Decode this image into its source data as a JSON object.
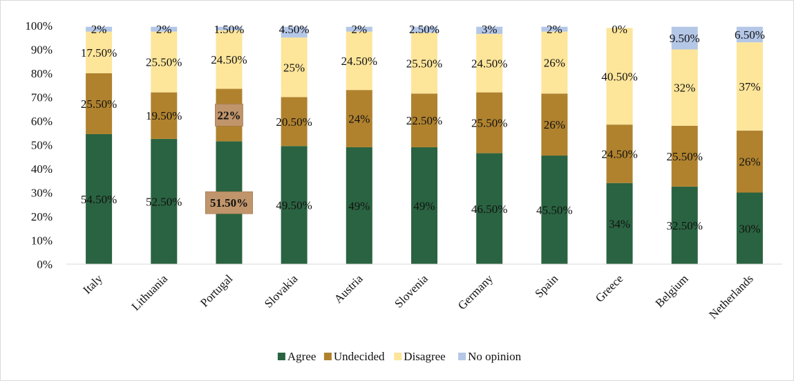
{
  "chart_data": {
    "type": "bar",
    "stacked": true,
    "categories": [
      "Italy",
      "Lithuania",
      "Portugal",
      "Slovakia",
      "Austria",
      "Slovenia",
      "Germany",
      "Spain",
      "Greece",
      "Belgium",
      "Netherlands"
    ],
    "series": [
      {
        "name": "Agree",
        "color": "#2a6341",
        "values": [
          54.5,
          52.5,
          51.5,
          49.5,
          49,
          49,
          46.5,
          45.5,
          34,
          32.5,
          30
        ],
        "labels": [
          "54.50%",
          "52.50%",
          "51.50%",
          "49.50%",
          "49%",
          "49%",
          "46.50%",
          "45.50%",
          "34%",
          "32.50%",
          "30%"
        ]
      },
      {
        "name": "Undecided",
        "color": "#b0822e",
        "values": [
          25.5,
          19.5,
          22,
          20.5,
          24,
          22.5,
          25.5,
          26,
          24.5,
          25.5,
          26
        ],
        "labels": [
          "25.50%",
          "19.50%",
          "22%",
          "20.50%",
          "24%",
          "22.50%",
          "25.50%",
          "26%",
          "24.50%",
          "25.50%",
          "26%"
        ]
      },
      {
        "name": "Disagree",
        "color": "#fde59a",
        "values": [
          17.5,
          25.5,
          24.5,
          25,
          24.5,
          25.5,
          24.5,
          26,
          40.5,
          32,
          37
        ],
        "labels": [
          "17.50%",
          "25.50%",
          "24.50%",
          "25%",
          "24.50%",
          "25.50%",
          "24.50%",
          "26%",
          "40.50%",
          "32%",
          "37%"
        ]
      },
      {
        "name": "No opinion",
        "color": "#b4c7e7",
        "values": [
          2,
          2,
          1.5,
          4.5,
          2,
          2.5,
          3,
          2,
          0,
          9.5,
          6.5
        ],
        "labels": [
          "2%",
          "2%",
          "1.50%",
          "4.50%",
          "2%",
          "2.50%",
          "3%",
          "2%",
          "0%",
          "9.50%",
          "6.50%"
        ]
      }
    ],
    "highlighted_labels": [
      {
        "series": "Undecided",
        "category": "Portugal",
        "label": "22%",
        "fill": "#c0956b"
      },
      {
        "series": "Agree",
        "category": "Portugal",
        "label": "51.50%",
        "fill": "#c0956b"
      }
    ],
    "yticks": [
      "0%",
      "10%",
      "20%",
      "30%",
      "40%",
      "50%",
      "60%",
      "70%",
      "80%",
      "90%",
      "100%"
    ],
    "ylim": [
      0,
      100
    ],
    "grid": false,
    "legend_position": "bottom",
    "axis_color": "#d9d9d9"
  }
}
